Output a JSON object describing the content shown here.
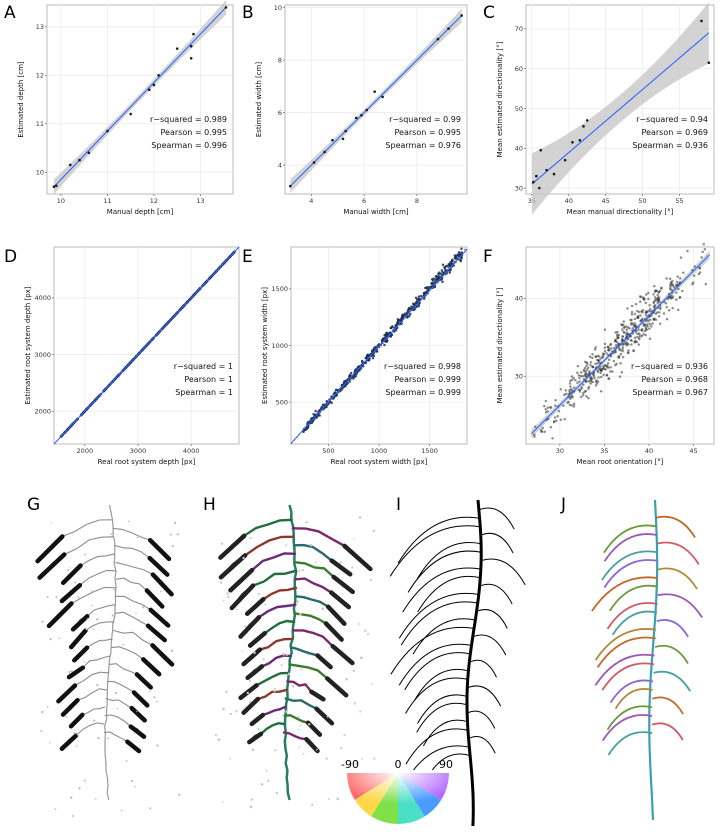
{
  "chart_data": [
    {
      "id": "A",
      "panel": "A",
      "type": "scatter",
      "xlabel": "Manual depth [cm]",
      "ylabel": "Estimated depth [cm]",
      "xlim": [
        9.7,
        13.7
      ],
      "ylim": [
        9.55,
        13.45
      ],
      "xticks": [
        10,
        11,
        12,
        13
      ],
      "yticks": [
        10,
        11,
        12,
        13
      ],
      "fit": {
        "x": [
          9.85,
          13.55
        ],
        "y": [
          9.7,
          13.4
        ]
      },
      "band": 0.07,
      "x": [
        9.85,
        9.9,
        10.2,
        10.4,
        10.6,
        11.0,
        11.5,
        11.9,
        12.0,
        12.1,
        12.5,
        12.8,
        12.8,
        12.85,
        13.55
      ],
      "y": [
        9.7,
        9.72,
        10.15,
        10.25,
        10.4,
        10.85,
        11.2,
        11.7,
        11.8,
        12.0,
        12.55,
        12.6,
        12.35,
        12.85,
        13.4
      ],
      "stats": [
        "r−squared = 0.989",
        "Pearson = 0.995",
        "Spearman = 0.996"
      ]
    },
    {
      "id": "B",
      "panel": "B",
      "type": "scatter",
      "xlabel": "Manual width [cm]",
      "ylabel": "Estimated width [cm]",
      "xlim": [
        3.0,
        9.9
      ],
      "ylim": [
        2.9,
        10.1
      ],
      "xticks": [
        4,
        6,
        8
      ],
      "yticks": [
        4,
        6,
        8,
        10
      ],
      "fit": {
        "x": [
          3.2,
          9.7
        ],
        "y": [
          3.2,
          9.7
        ]
      },
      "band": 0.12,
      "x": [
        3.2,
        4.1,
        4.5,
        4.8,
        5.2,
        5.3,
        5.7,
        5.9,
        6.1,
        6.4,
        6.7,
        8.8,
        9.2,
        9.7
      ],
      "y": [
        3.2,
        4.1,
        4.5,
        4.95,
        5.0,
        5.3,
        5.8,
        5.9,
        6.1,
        6.8,
        6.6,
        8.8,
        9.2,
        9.7
      ],
      "stats": [
        "r−squared = 0.99",
        "Pearson = 0.995",
        "Spearman = 0.976"
      ]
    },
    {
      "id": "C",
      "panel": "C",
      "type": "scatter",
      "xlabel": "Mean manual directionality [°]",
      "ylabel": "Mean estimated directionality [°]",
      "xlim": [
        34.2,
        59.7
      ],
      "ylim": [
        28.5,
        76
      ],
      "xticks": [
        35,
        40,
        45,
        50,
        55
      ],
      "yticks": [
        30,
        40,
        50,
        60,
        70
      ],
      "fit": {
        "x": [
          35,
          59
        ],
        "y": [
          31,
          69
        ]
      },
      "band": 3.5,
      "x": [
        35.2,
        35.6,
        36.0,
        36.2,
        37.0,
        38.0,
        39.5,
        40.5,
        41.5,
        42.0,
        42.5,
        58.0,
        59.0
      ],
      "y": [
        31.5,
        33.0,
        30.0,
        39.5,
        34.5,
        33.5,
        37.0,
        41.5,
        42.0,
        45.5,
        47.0,
        72.0,
        61.5
      ],
      "stats": [
        "r−squared = 0.94",
        "Pearson = 0.969",
        "Spearman = 0.936"
      ]
    },
    {
      "id": "D",
      "panel": "D",
      "type": "scatter",
      "xlabel": "Real root system depth [px]",
      "ylabel": "Estimated root system depth [px]",
      "xlim": [
        1420,
        4900
      ],
      "ylim": [
        1420,
        4900
      ],
      "xticks": [
        2000,
        3000,
        4000
      ],
      "yticks": [
        2000,
        3000,
        4000
      ],
      "fit": {
        "x": [
          1420,
          4900
        ],
        "y": [
          1420,
          4900
        ]
      },
      "band": 0,
      "dense": {
        "from": 1550,
        "to": 4820,
        "n": 480,
        "noise": 0,
        "seed": 7
      },
      "stats": [
        "r−squared = 1",
        "Pearson = 1",
        "Spearman = 1"
      ]
    },
    {
      "id": "E",
      "panel": "E",
      "type": "scatter",
      "xlabel": "Real root system width [px]",
      "ylabel": "Estimated root system width [px]",
      "xlim": [
        130,
        1870
      ],
      "ylim": [
        130,
        1870
      ],
      "xticks": [
        500,
        1000,
        1500
      ],
      "yticks": [
        500,
        1000,
        1500
      ],
      "fit": {
        "x": [
          130,
          1870
        ],
        "y": [
          135,
          1850
        ]
      },
      "band": 0,
      "dense": {
        "from": 250,
        "to": 1820,
        "n": 520,
        "noise": 22,
        "seed": 11
      },
      "stats": [
        "r−squared = 0.998",
        "Pearson = 0.999",
        "Spearman = 0.999"
      ]
    },
    {
      "id": "F",
      "panel": "F",
      "type": "scatter",
      "xlabel": "Mean root orientation [°]",
      "ylabel": "Mean estimated directionality [°]",
      "xlim": [
        26.2,
        47.3
      ],
      "ylim": [
        21.3,
        46.6
      ],
      "xticks": [
        30,
        35,
        40,
        45
      ],
      "yticks": [
        30,
        40
      ],
      "fit": {
        "x": [
          26.8,
          46.8
        ],
        "y": [
          22.6,
          45.6
        ]
      },
      "band": 0.25,
      "dense": {
        "from": 27.0,
        "to": 46.5,
        "n": 520,
        "noise": 1.4,
        "seed": 23,
        "slope": 1.15,
        "intercept": -8.2
      },
      "stats": [
        "r−squared = 0.936",
        "Pearson = 0.968",
        "Spearman = 0.967"
      ]
    }
  ],
  "image_panels": [
    "G",
    "H",
    "I",
    "J"
  ],
  "colorwheel": {
    "labels": [
      "-90",
      "0",
      "90"
    ]
  },
  "colors": {
    "points": "#1a1a1a",
    "fit_line": "#3366ff",
    "band": "#c4c4c4",
    "dense": "#1b2f55",
    "panel_bg": "#ffffff",
    "grid": "#ebebeb",
    "frame": "#aaaaaa"
  }
}
